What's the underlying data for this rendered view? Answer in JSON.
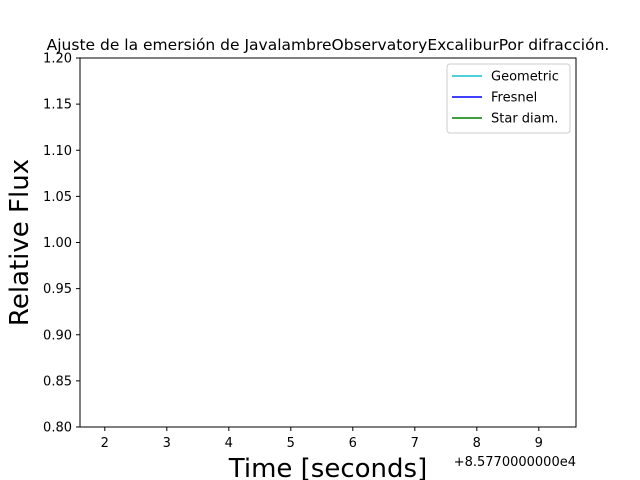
{
  "chart_data": {
    "type": "line",
    "title": "Ajuste de la emersión de JavalambreObservatoryExcaliburPor difracción.",
    "xlabel": "Time [seconds]",
    "ylabel": "Relative Flux",
    "x_offset_label": "+8.5770000000e4",
    "xlim": [
      1.6,
      9.6
    ],
    "ylim": [
      0.8,
      1.2
    ],
    "x_ticks": [
      2,
      3,
      4,
      5,
      6,
      7,
      8,
      9
    ],
    "x_tick_labels": [
      "2",
      "3",
      "4",
      "5",
      "6",
      "7",
      "8",
      "9"
    ],
    "y_ticks": [
      0.8,
      0.85,
      0.9,
      0.95,
      1.0,
      1.05,
      1.1,
      1.15,
      1.2
    ],
    "y_tick_labels": [
      "0.80",
      "0.85",
      "0.90",
      "0.95",
      "1.00",
      "1.05",
      "1.10",
      "1.15",
      "1.20"
    ],
    "grid": false,
    "legend_position": "top-right",
    "series": [
      {
        "name": "Geometric",
        "color": "#17becf",
        "x": [],
        "y": []
      },
      {
        "name": "Fresnel",
        "color": "#0000ff",
        "x": [],
        "y": []
      },
      {
        "name": "Star diam.",
        "color": "#008000",
        "x": [],
        "y": []
      }
    ]
  }
}
